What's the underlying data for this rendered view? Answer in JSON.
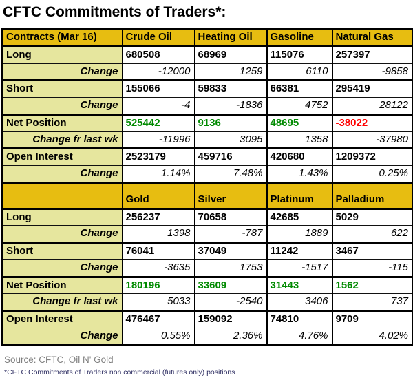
{
  "title": "CFTC Commitments of Traders*:",
  "colors": {
    "header_bg": "#E7BD11",
    "label_bg": "#E6E69E",
    "net_positive": "#008A00",
    "net_negative": "#FF0000",
    "source_text": "#808080",
    "footnote_text": "#333366",
    "border": "#000000"
  },
  "chart_data": [
    {
      "type": "table",
      "title": "CFTC Commitments of Traders*:",
      "header": [
        "Contracts (Mar 16)",
        "Crude Oil",
        "Heating Oil",
        "Gasoline",
        "Natural Gas"
      ],
      "rows": [
        {
          "label": "Long",
          "style": "value",
          "values": [
            "680508",
            "68969",
            "115076",
            "257397"
          ]
        },
        {
          "label": "Change",
          "style": "change",
          "values": [
            "-12000",
            "1259",
            "6110",
            "-9858"
          ]
        },
        {
          "label": "Short",
          "style": "value",
          "values": [
            "155066",
            "59833",
            "66381",
            "295419"
          ]
        },
        {
          "label": "Change",
          "style": "change",
          "values": [
            "-4",
            "-1836",
            "4752",
            "28122"
          ]
        },
        {
          "label": "Net Position",
          "style": "net",
          "values": [
            "525442",
            "9136",
            "48695",
            "-38022"
          ]
        },
        {
          "label": "Change fr last wk",
          "style": "change",
          "values": [
            "-11996",
            "3095",
            "1358",
            "-37980"
          ]
        },
        {
          "label": "Open Interest",
          "style": "value",
          "values": [
            "2523179",
            "459716",
            "420680",
            "1209372"
          ]
        },
        {
          "label": "Change",
          "style": "change",
          "values": [
            "1.14%",
            "7.48%",
            "1.43%",
            "0.25%"
          ]
        }
      ]
    },
    {
      "type": "table",
      "title": "",
      "header": [
        "",
        "Gold",
        "Silver",
        "Platinum",
        "Palladium"
      ],
      "rows": [
        {
          "label": "Long",
          "style": "value",
          "values": [
            "256237",
            "70658",
            "42685",
            "5029"
          ]
        },
        {
          "label": "Change",
          "style": "change",
          "values": [
            "1398",
            "-787",
            "1889",
            "622"
          ]
        },
        {
          "label": "Short",
          "style": "value",
          "values": [
            "76041",
            "37049",
            "11242",
            "3467"
          ]
        },
        {
          "label": "Change",
          "style": "change",
          "values": [
            "-3635",
            "1753",
            "-1517",
            "-115"
          ]
        },
        {
          "label": "Net Position",
          "style": "net",
          "values": [
            "180196",
            "33609",
            "31443",
            "1562"
          ]
        },
        {
          "label": "Change fr last wk",
          "style": "change",
          "values": [
            "5033",
            "-2540",
            "3406",
            "737"
          ]
        },
        {
          "label": "Open Interest",
          "style": "value",
          "values": [
            "476467",
            "159092",
            "74810",
            "9709"
          ]
        },
        {
          "label": "Change",
          "style": "change",
          "values": [
            "0.55%",
            "2.36%",
            "4.76%",
            "4.02%"
          ]
        }
      ]
    }
  ],
  "footer": {
    "source": "Source: CFTC, Oil N' Gold",
    "footnote": "*CFTC Commitments of Traders non commercial (futures only) positions"
  }
}
